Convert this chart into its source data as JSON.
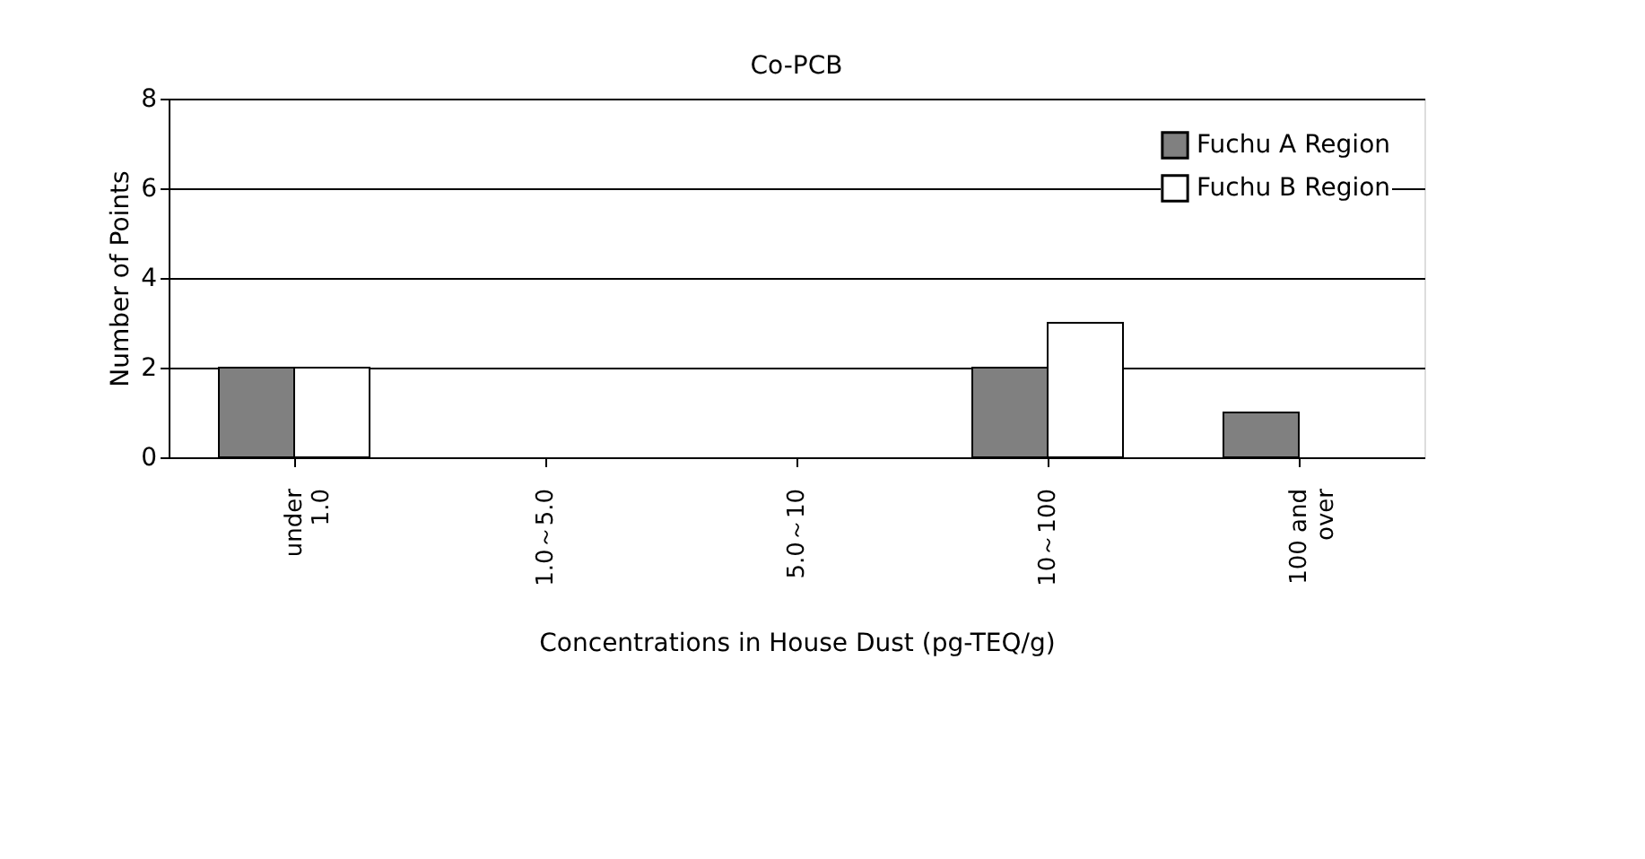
{
  "chart_data": {
    "type": "bar",
    "title": "Co-PCB",
    "xlabel": "Concentrations in House Dust (pg-TEQ/g)",
    "ylabel": "Number of Points",
    "categories": [
      "under 1.0",
      "1.0～5.0",
      "5.0～10",
      "10～100",
      "100 and over"
    ],
    "series": [
      {
        "name": "Fuchu A Region",
        "color": "#808080",
        "values": [
          2,
          0,
          0,
          2,
          1
        ]
      },
      {
        "name": "Fuchu B Region",
        "color": "#ffffff",
        "values": [
          2,
          0,
          0,
          3,
          0
        ]
      }
    ],
    "ylim": [
      0,
      8
    ],
    "yticks": [
      0,
      2,
      4,
      6,
      8
    ],
    "grid": "y",
    "legend": "top right"
  }
}
